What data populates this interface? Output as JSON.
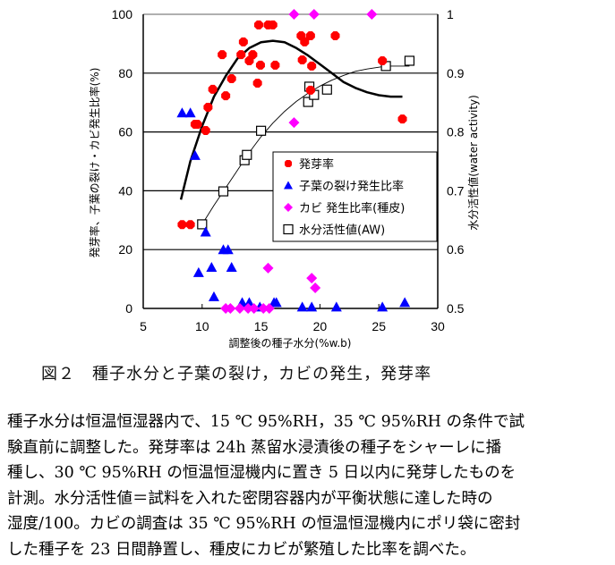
{
  "chart_data": {
    "type": "scatter",
    "xlabel": "調整後の種子水分(%w.b)",
    "ylabel": "発芽率、子葉の裂け・カビ発生比率(%)",
    "y2label": "水分活性値(water activity)",
    "xlim": [
      5,
      30
    ],
    "ylim": [
      0,
      100
    ],
    "y2lim": [
      0.5,
      1
    ],
    "x_ticks": [
      "5",
      "10",
      "15",
      "20",
      "25",
      "30"
    ],
    "y_ticks": [
      "0",
      "20",
      "40",
      "60",
      "80",
      "100"
    ],
    "y2_ticks": [
      "0.5",
      "0.6",
      "0.7",
      "0.8",
      "0.9",
      "1"
    ],
    "grid": "horizontal",
    "legend_position": "center-right",
    "series": [
      {
        "name": "発芽率",
        "marker": "circle",
        "color": "#ff0000",
        "axis": "left",
        "points": [
          [
            8.3,
            28.5
          ],
          [
            9.0,
            28.5
          ],
          [
            9.4,
            62.6
          ],
          [
            9.6,
            62.6
          ],
          [
            10.3,
            60.5
          ],
          [
            10.5,
            68.4
          ],
          [
            10.9,
            74.5
          ],
          [
            11.7,
            86.3
          ],
          [
            12.0,
            72.3
          ],
          [
            12.5,
            78.1
          ],
          [
            13.3,
            86.3
          ],
          [
            13.5,
            90.6
          ],
          [
            14.0,
            84.2
          ],
          [
            14.3,
            86.3
          ],
          [
            14.7,
            76.6
          ],
          [
            14.8,
            96.4
          ],
          [
            14.95,
            82.7
          ],
          [
            15.6,
            96.4
          ],
          [
            16.0,
            96.4
          ],
          [
            16.2,
            82.7
          ],
          [
            18.4,
            92.7
          ],
          [
            18.5,
            84.5
          ],
          [
            18.7,
            90.6
          ],
          [
            19.2,
            92.7
          ],
          [
            19.2,
            74.2
          ],
          [
            19.3,
            82.4
          ],
          [
            21.3,
            92.7
          ],
          [
            25.3,
            84.2
          ],
          [
            27.0,
            64.4
          ]
        ],
        "trend": [
          [
            8.2,
            37
          ],
          [
            9.0,
            50
          ],
          [
            10.0,
            62
          ],
          [
            11.0,
            72
          ],
          [
            12.0,
            79
          ],
          [
            13.0,
            85
          ],
          [
            14.0,
            88.5
          ],
          [
            15.0,
            90.5
          ],
          [
            16.0,
            91
          ],
          [
            17.0,
            90.5
          ],
          [
            18.0,
            88.5
          ],
          [
            19.0,
            86
          ],
          [
            20.0,
            83
          ],
          [
            21.0,
            80
          ],
          [
            22.0,
            77
          ],
          [
            23.0,
            75
          ],
          [
            24.0,
            73.5
          ],
          [
            25.0,
            72.5
          ],
          [
            26.0,
            72
          ],
          [
            27.0,
            72
          ]
        ]
      },
      {
        "name": "子葉の裂け発生比率",
        "marker": "triangle",
        "color": "#0000ff",
        "axis": "left",
        "points": [
          [
            8.3,
            66.5
          ],
          [
            9.0,
            66.5
          ],
          [
            9.4,
            52
          ],
          [
            9.7,
            12.2
          ],
          [
            10.3,
            26
          ],
          [
            10.8,
            14
          ],
          [
            11.0,
            4
          ],
          [
            11.8,
            20
          ],
          [
            12.2,
            20
          ],
          [
            12.5,
            14
          ],
          [
            13.4,
            2
          ],
          [
            14.0,
            2
          ],
          [
            14.9,
            0.5
          ],
          [
            16.1,
            2
          ],
          [
            16.3,
            2
          ],
          [
            18.5,
            0.5
          ],
          [
            19.3,
            0.5
          ],
          [
            21.4,
            0.5
          ],
          [
            25.3,
            0.5
          ],
          [
            27.2,
            2
          ]
        ]
      },
      {
        "name": "カビ 発生比率(種皮)",
        "marker": "diamond",
        "color": "#ff00ff",
        "axis": "left",
        "points": [
          [
            12.0,
            0
          ],
          [
            12.4,
            0
          ],
          [
            13.2,
            0
          ],
          [
            13.9,
            0
          ],
          [
            14.4,
            0
          ],
          [
            15.2,
            0
          ],
          [
            15.7,
            0
          ],
          [
            15.6,
            13.7
          ],
          [
            17.8,
            63.2
          ],
          [
            19.3,
            10.3
          ],
          [
            19.6,
            7
          ],
          [
            17.8,
            100
          ],
          [
            19.5,
            100
          ],
          [
            24.4,
            100
          ]
        ]
      },
      {
        "name": "水分活性値(AW)",
        "marker": "square",
        "color": "#000000",
        "axis": "right",
        "points": [
          [
            10.0,
            0.643
          ],
          [
            11.8,
            0.699
          ],
          [
            13.6,
            0.752
          ],
          [
            13.8,
            0.761
          ],
          [
            15.0,
            0.802
          ],
          [
            19.0,
            0.851
          ],
          [
            19.1,
            0.877
          ],
          [
            19.5,
            0.863
          ],
          [
            20.6,
            0.872
          ],
          [
            25.6,
            0.912
          ],
          [
            27.6,
            0.921
          ]
        ],
        "trend": [
          [
            10.0,
            0.643
          ],
          [
            11.0,
            0.675
          ],
          [
            12.0,
            0.705
          ],
          [
            13.0,
            0.735
          ],
          [
            14.0,
            0.765
          ],
          [
            15.0,
            0.792
          ],
          [
            16.0,
            0.815
          ],
          [
            17.0,
            0.835
          ],
          [
            18.0,
            0.852
          ],
          [
            19.0,
            0.866
          ],
          [
            20.0,
            0.878
          ],
          [
            21.0,
            0.888
          ],
          [
            22.0,
            0.896
          ],
          [
            23.0,
            0.903
          ],
          [
            24.0,
            0.907
          ],
          [
            25.0,
            0.91
          ],
          [
            25.6,
            0.912
          ],
          [
            27.6,
            0.912
          ]
        ]
      }
    ]
  },
  "caption": "図２　種子水分と子葉の裂け，カビの発生，発芽率",
  "body_lines": [
    "種子水分は恒温恒湿器内で、15 ℃ 95%RH，35 ℃ 95%RH の条件で試",
    "験直前に調整した。発芽率は 24h 蒸留水浸漬後の種子をシャーレに播",
    "種し、30 ℃ 95%RH の恒温恒湿機内に置き 5 日以内に発芽したものを",
    "計測。水分活性値＝試料を入れた密閉容器内が平衡状態に達した時の",
    "湿度/100。カビの調査は 35 ℃ 95%RH の恒温恒湿機内にポリ袋に密封",
    "した種子を 23 日間静置し、種皮にカビが繁殖した比率を調べた。"
  ]
}
